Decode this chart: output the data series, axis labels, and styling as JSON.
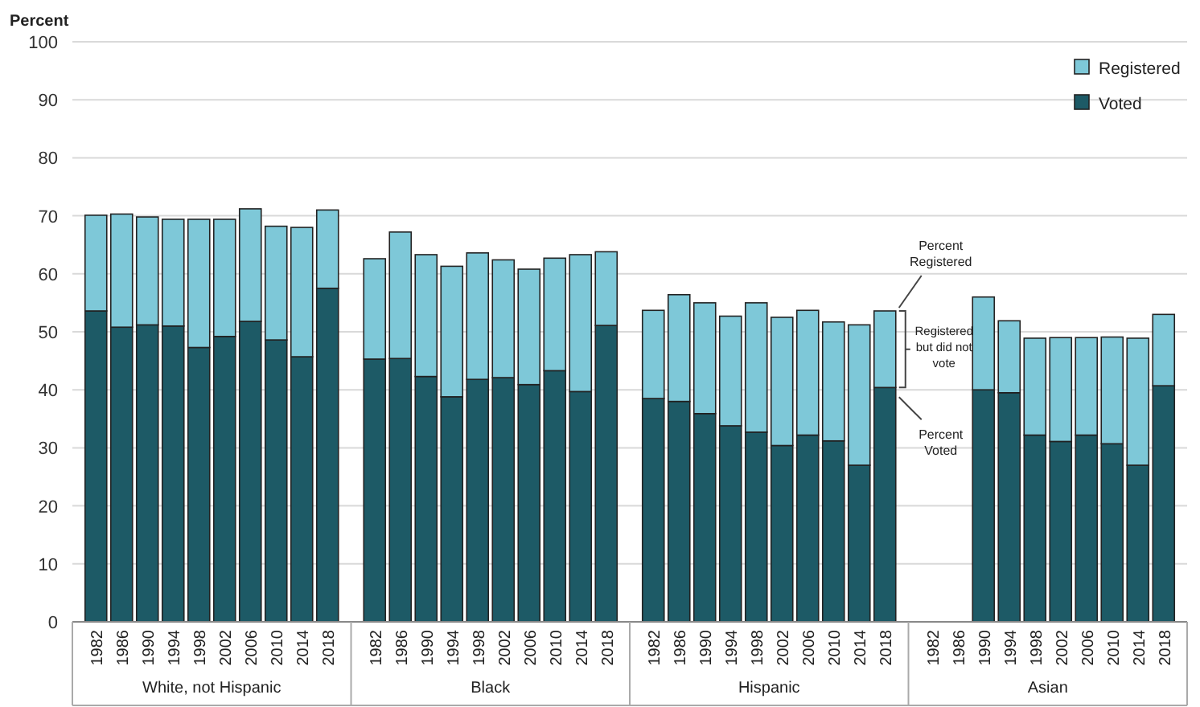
{
  "chart_data": {
    "type": "bar",
    "stacked": true,
    "ylabel": "Percent",
    "ylim": [
      0,
      100
    ],
    "yticks": [
      0,
      10,
      20,
      30,
      40,
      50,
      60,
      70,
      80,
      90,
      100
    ],
    "grid": "y",
    "legend": "top right",
    "categories": [
      "1982",
      "1986",
      "1990",
      "1994",
      "1998",
      "2002",
      "2006",
      "2010",
      "2014",
      "2018",
      "1982",
      "1986",
      "1990",
      "1994",
      "1998",
      "2002",
      "2006",
      "2010",
      "2014",
      "2018",
      "1982",
      "1986",
      "1990",
      "1994",
      "1998",
      "2002",
      "2006",
      "2010",
      "2014",
      "2018",
      "1982",
      "1986",
      "1990",
      "1994",
      "1998",
      "2002",
      "2006",
      "2010",
      "2014",
      "2018"
    ],
    "series": [
      {
        "name": "Voted",
        "color": "#1d5a66",
        "values": [
          53.6,
          50.8,
          51.2,
          51.0,
          47.3,
          49.2,
          51.8,
          48.6,
          45.7,
          57.5,
          45.3,
          45.4,
          42.3,
          38.8,
          41.8,
          42.1,
          40.9,
          43.3,
          39.7,
          51.1,
          38.5,
          38.0,
          35.9,
          33.8,
          32.7,
          30.4,
          32.2,
          31.2,
          27.0,
          40.4,
          null,
          null,
          40.0,
          39.5,
          32.2,
          31.1,
          32.2,
          30.7,
          27.0,
          40.7
        ]
      },
      {
        "name": "Registered",
        "color": "#7ec8d8",
        "values": [
          16.5,
          19.5,
          18.6,
          18.4,
          22.1,
          20.2,
          19.4,
          19.6,
          22.3,
          13.5,
          17.3,
          21.8,
          21.0,
          22.5,
          21.8,
          20.3,
          19.9,
          19.4,
          23.6,
          12.7,
          15.2,
          18.4,
          19.1,
          18.9,
          22.3,
          22.1,
          21.5,
          20.5,
          24.2,
          13.2,
          null,
          null,
          16.0,
          12.4,
          16.7,
          17.9,
          16.8,
          18.4,
          21.9,
          12.3
        ]
      }
    ],
    "annotations": [
      "White, not Hispanic",
      "Black",
      "Hispanic",
      "Asian",
      "Percent Registered",
      "Registered but did not vote",
      "Percent Voted"
    ]
  }
}
